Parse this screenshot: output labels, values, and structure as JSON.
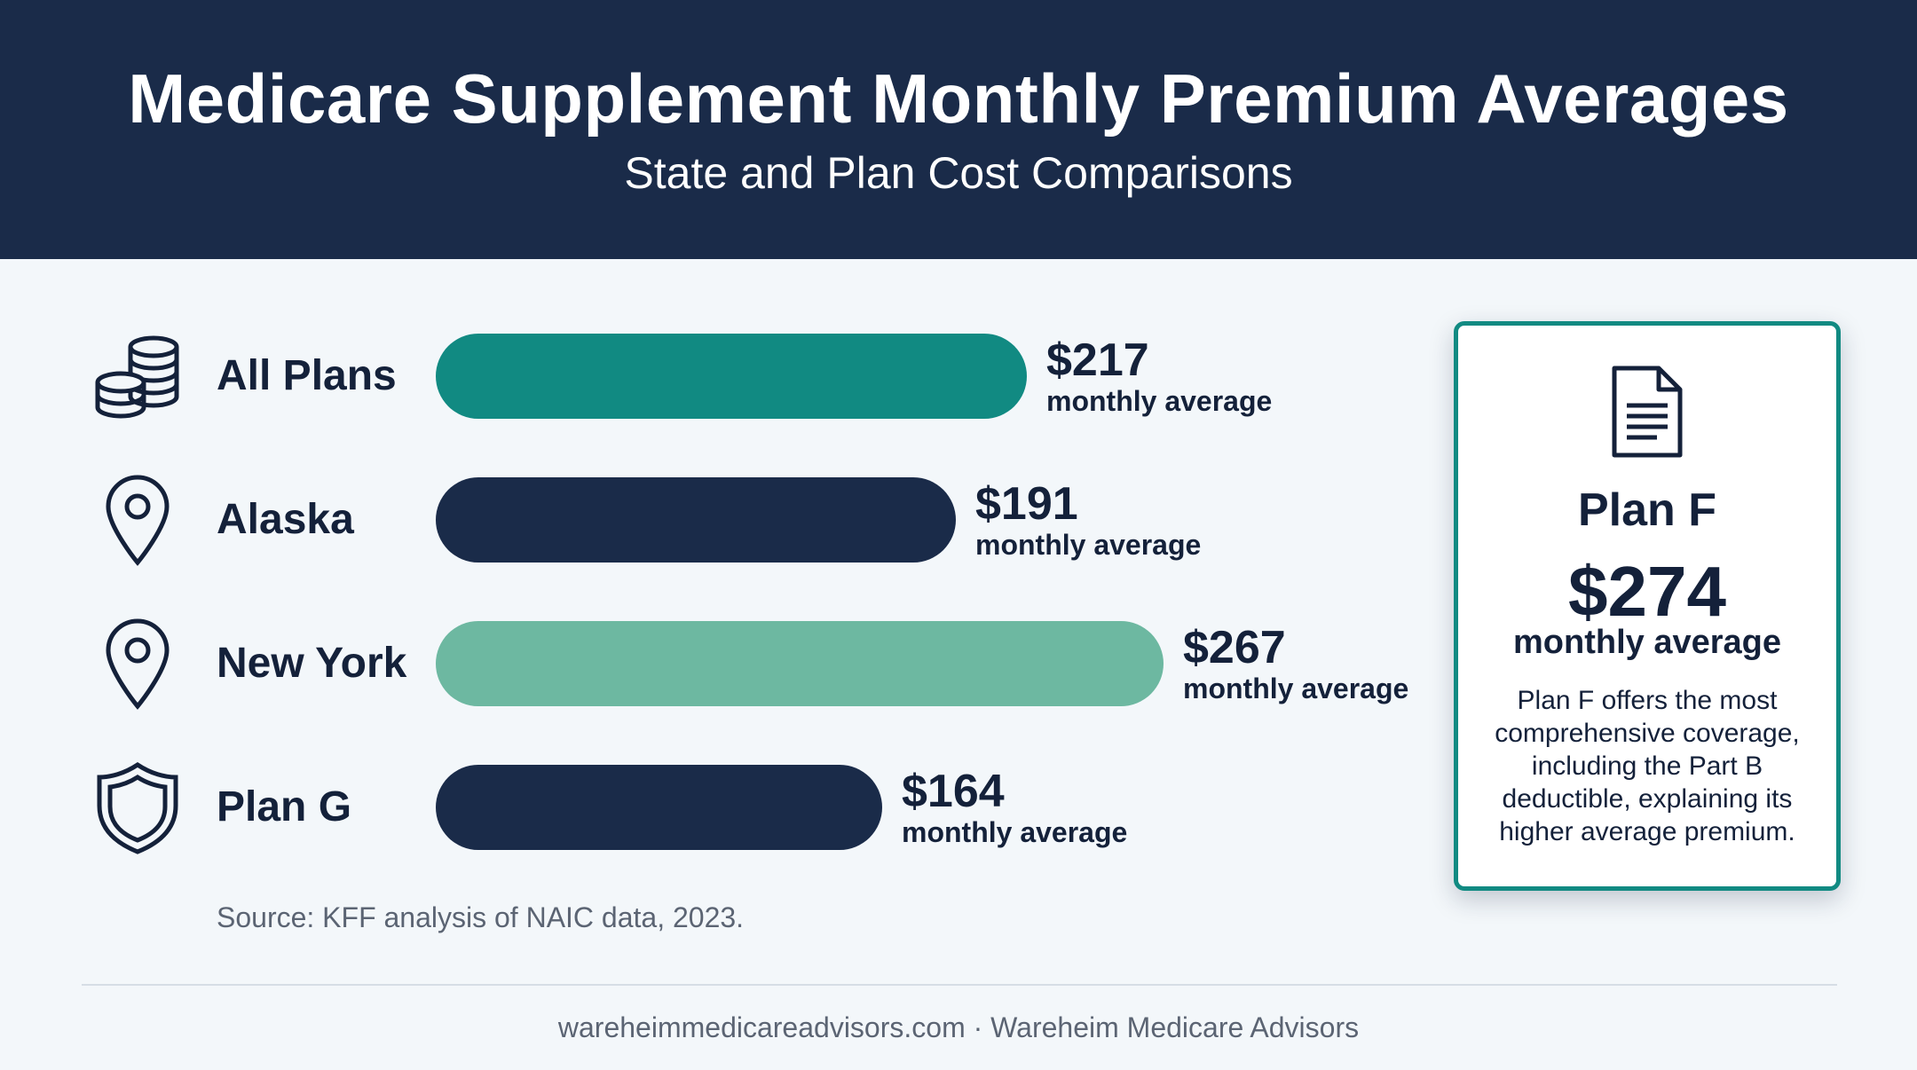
{
  "header": {
    "title": "Medicare Supplement Monthly Premium Averages",
    "subtitle": "State and Plan Cost Comparisons"
  },
  "rows": [
    {
      "label": "All Plans",
      "value_text": "$217",
      "sub": "monthly average",
      "icon": "coins-icon",
      "color": "#118a82"
    },
    {
      "label": "Alaska",
      "value_text": "$191",
      "sub": "monthly average",
      "icon": "location-pin-icon",
      "color": "#1a2b49"
    },
    {
      "label": "New York",
      "value_text": "$267",
      "sub": "monthly average",
      "icon": "location-pin-icon",
      "color": "#6db8a1"
    },
    {
      "label": "Plan G",
      "value_text": "$164",
      "sub": "monthly average",
      "icon": "shield-icon",
      "color": "#1a2b49"
    }
  ],
  "chart_data": {
    "type": "bar",
    "orientation": "horizontal",
    "categories": [
      "All Plans",
      "Alaska",
      "New York",
      "Plan G"
    ],
    "values": [
      217,
      191,
      267,
      164
    ],
    "unit": "$ per month"
  },
  "source": "Source: KFF analysis of NAIC data, 2023.",
  "card": {
    "icon": "document-icon",
    "title": "Plan F",
    "value": "$274",
    "sub": "monthly average",
    "description": "Plan F offers the most comprehensive coverage, including the Part B deductible, explaining its higher average premium."
  },
  "footer": "wareheimmedicareadvisors.com · Wareheim Medicare Advisors",
  "colors": {
    "navy": "#1a2b49",
    "teal": "#118a82",
    "light_teal": "#6db8a1",
    "background": "#f3f7fa"
  }
}
